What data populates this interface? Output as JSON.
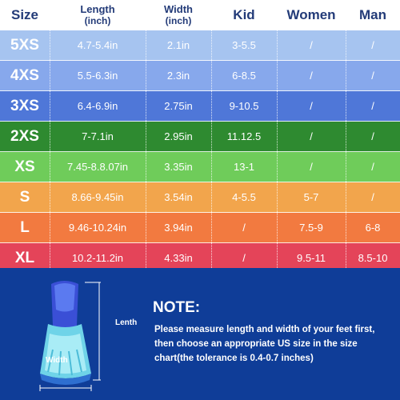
{
  "colors": {
    "rows": [
      "#a6c4f0",
      "#87a8ec",
      "#4f77d8",
      "#2e8a30",
      "#6fcc5a",
      "#f2a54c",
      "#f27a40",
      "#e44459"
    ],
    "header_text": "#233b78",
    "panel": "#0f3d98"
  },
  "header": {
    "size": "Size",
    "length": "Length",
    "length_unit": "(inch)",
    "width": "Width",
    "width_unit": "(inch)",
    "kid": "Kid",
    "women": "Women",
    "man": "Man"
  },
  "rows": [
    {
      "size": "5XS",
      "length": "4.7-5.4in",
      "width": "2.1in",
      "kid": "3-5.5",
      "women": "/",
      "man": "/"
    },
    {
      "size": "4XS",
      "length": "5.5-6.3in",
      "width": "2.3in",
      "kid": "6-8.5",
      "women": "/",
      "man": "/"
    },
    {
      "size": "3XS",
      "length": "6.4-6.9in",
      "width": "2.75in",
      "kid": "9-10.5",
      "women": "/",
      "man": "/"
    },
    {
      "size": "2XS",
      "length": "7-7.1in",
      "width": "2.95in",
      "kid": "11.12.5",
      "women": "/",
      "man": "/"
    },
    {
      "size": "XS",
      "length": "7.45-8.8.07in",
      "width": "3.35in",
      "kid": "13-1",
      "women": "/",
      "man": "/"
    },
    {
      "size": "S",
      "length": "8.66-9.45in",
      "width": "3.54in",
      "kid": "4-5.5",
      "women": "5-7",
      "man": "/"
    },
    {
      "size": "L",
      "length": "9.46-10.24in",
      "width": "3.94in",
      "kid": "/",
      "women": "7.5-9",
      "man": "6-8"
    },
    {
      "size": "XL",
      "length": "10.2-11.2in",
      "width": "4.33in",
      "kid": "/",
      "women": "9.5-11",
      "man": "8.5-10"
    }
  ],
  "note": {
    "title": "NOTE:",
    "line1": "Please measure length and width of your feet first,",
    "line2": "then choose an appropriate US size in the size",
    "line3": "chart(the tolerance is 0.4-0.7 inches)"
  },
  "diagram": {
    "length_label": "Lenth",
    "width_label": "Width"
  }
}
